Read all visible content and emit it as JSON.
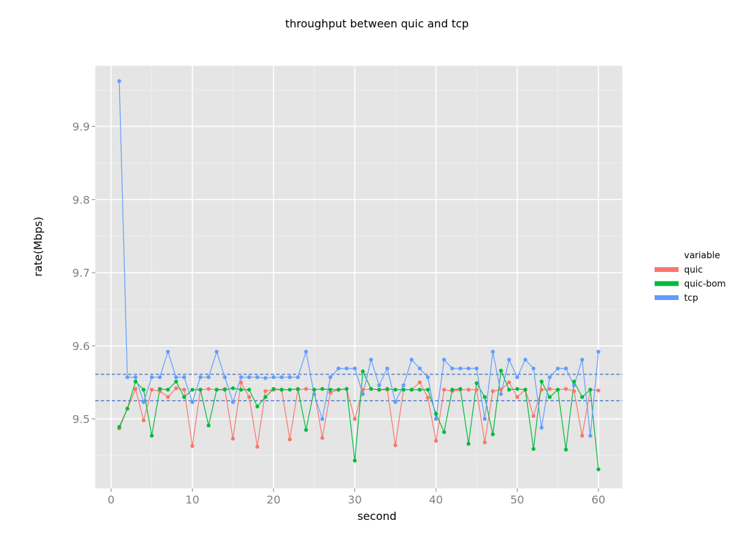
{
  "chart_data": {
    "type": "line",
    "title": "throughput between quic and tcp",
    "xlabel": "second",
    "ylabel": "rate(Mbps)",
    "xlim": [
      -1.95,
      62.95
    ],
    "ylim": [
      9.405,
      9.983
    ],
    "x_ticks": [
      0,
      10,
      20,
      30,
      40,
      50,
      60
    ],
    "y_ticks": [
      9.5,
      9.6,
      9.7,
      9.8,
      9.9
    ],
    "grid": true,
    "legend": {
      "title": "variable",
      "placement": "right"
    },
    "reference_lines": [
      9.561,
      9.525
    ],
    "x": [
      1,
      2,
      3,
      4,
      5,
      6,
      7,
      8,
      9,
      10,
      11,
      12,
      13,
      14,
      15,
      16,
      17,
      18,
      19,
      20,
      21,
      22,
      23,
      24,
      25,
      26,
      27,
      28,
      29,
      30,
      31,
      32,
      33,
      34,
      35,
      36,
      37,
      38,
      39,
      40,
      41,
      42,
      43,
      44,
      45,
      46,
      47,
      48,
      49,
      50,
      51,
      52,
      53,
      54,
      55,
      56,
      57,
      58,
      59,
      60
    ],
    "series": [
      {
        "name": "quic",
        "color": "#f8766d",
        "values": [
          9.487,
          9.514,
          9.541,
          9.498,
          9.54,
          9.538,
          9.53,
          9.542,
          9.54,
          9.463,
          9.54,
          9.541,
          9.54,
          9.541,
          9.473,
          9.55,
          9.53,
          9.462,
          9.538,
          9.54,
          9.54,
          9.472,
          9.54,
          9.541,
          9.54,
          9.474,
          9.536,
          9.54,
          9.541,
          9.5,
          9.54,
          9.541,
          9.54,
          9.54,
          9.464,
          9.54,
          9.54,
          9.55,
          9.529,
          9.47,
          9.54,
          9.538,
          9.54,
          9.54,
          9.54,
          9.468,
          9.538,
          9.54,
          9.55,
          9.53,
          9.54,
          9.504,
          9.54,
          9.541,
          9.54,
          9.541,
          9.538,
          9.477,
          9.54,
          9.539
        ]
      },
      {
        "name": "quic-bom",
        "color": "#00ba38",
        "values": [
          9.489,
          9.514,
          9.551,
          9.54,
          9.477,
          9.541,
          9.54,
          9.551,
          9.53,
          9.54,
          9.54,
          9.491,
          9.54,
          9.54,
          9.542,
          9.54,
          9.54,
          9.517,
          9.53,
          9.541,
          9.54,
          9.54,
          9.541,
          9.485,
          9.54,
          9.541,
          9.54,
          9.54,
          9.541,
          9.443,
          9.565,
          9.541,
          9.54,
          9.541,
          9.54,
          9.54,
          9.54,
          9.54,
          9.54,
          9.507,
          9.482,
          9.54,
          9.541,
          9.466,
          9.549,
          9.53,
          9.479,
          9.566,
          9.54,
          9.541,
          9.54,
          9.459,
          9.551,
          9.53,
          9.54,
          9.458,
          9.551,
          9.53,
          9.54,
          9.431
        ]
      },
      {
        "name": "tcp",
        "color": "#619cff",
        "values": [
          9.962,
          9.557,
          9.557,
          9.523,
          9.557,
          9.557,
          9.592,
          9.557,
          9.557,
          9.523,
          9.557,
          9.557,
          9.592,
          9.557,
          9.523,
          9.557,
          9.557,
          9.557,
          9.556,
          9.557,
          9.557,
          9.557,
          9.557,
          9.592,
          9.534,
          9.5,
          9.557,
          9.569,
          9.569,
          9.569,
          9.534,
          9.581,
          9.546,
          9.569,
          9.523,
          9.546,
          9.581,
          9.569,
          9.557,
          9.5,
          9.581,
          9.569,
          9.569,
          9.569,
          9.569,
          9.5,
          9.592,
          9.534,
          9.581,
          9.557,
          9.581,
          9.569,
          9.488,
          9.557,
          9.569,
          9.569,
          9.546,
          9.581,
          9.477,
          9.592
        ]
      }
    ]
  }
}
